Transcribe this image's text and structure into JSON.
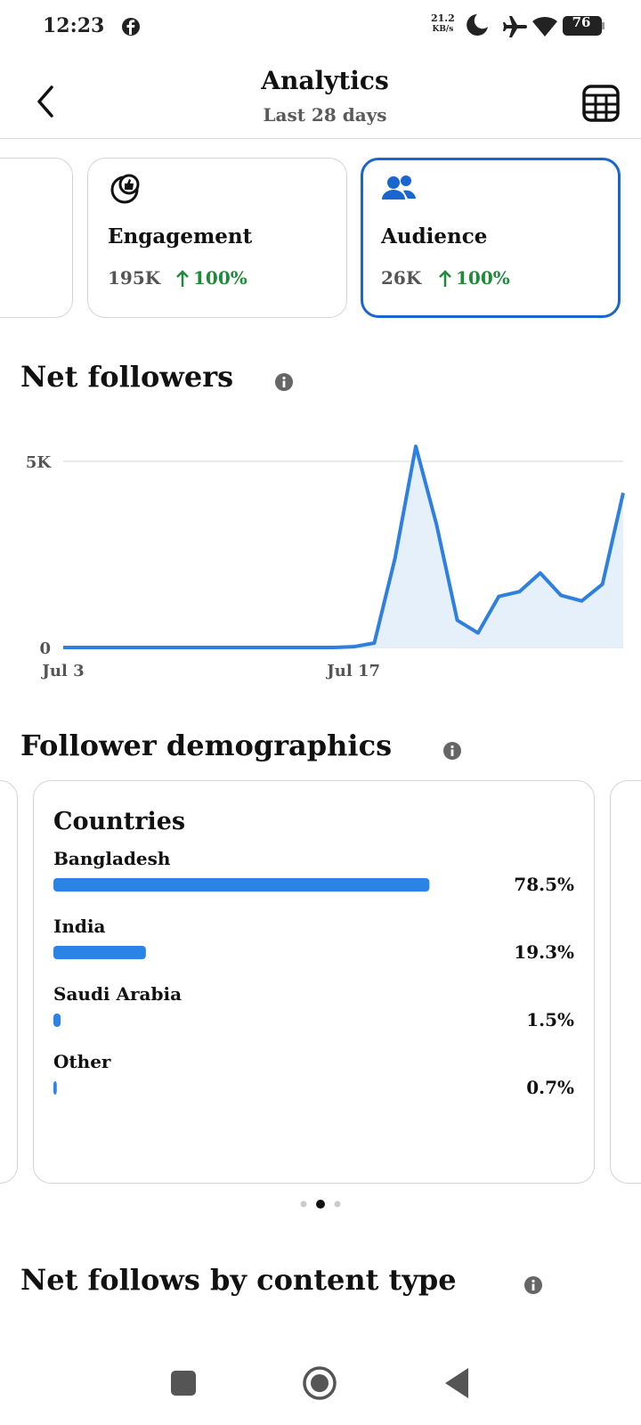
{
  "status_bar": {
    "time": "12:23",
    "speed": "21.2",
    "speed_unit": "KB/s",
    "battery": "76"
  },
  "header": {
    "title": "Analytics",
    "subtitle": "Last 28 days"
  },
  "cards": [
    {
      "title": "Engagement",
      "value": "195K",
      "change": "100%"
    },
    {
      "title": "Audience",
      "value": "26K",
      "change": "100%"
    }
  ],
  "chart_data": {
    "type": "line",
    "title": "Net followers",
    "categories": [
      "Jul 3",
      null,
      null,
      null,
      null,
      null,
      null,
      null,
      null,
      null,
      null,
      null,
      null,
      null,
      "Jul 17",
      null,
      null,
      null,
      null,
      null,
      null,
      null,
      null,
      null,
      null,
      null,
      null,
      null
    ],
    "values": [
      0,
      0,
      0,
      0,
      0,
      0,
      0,
      0,
      0,
      0,
      0,
      0,
      0,
      0,
      20,
      120,
      2400,
      5400,
      3300,
      730,
      390,
      1370,
      1500,
      2000,
      1400,
      1250,
      1700,
      4150
    ],
    "color": "#2d7fe0",
    "area_color": "#e6f0fb",
    "ylim": [
      0,
      5500
    ],
    "yticks": [
      0,
      {
        "value": 5000,
        "label": "5K"
      }
    ],
    "grid": true
  },
  "demographics": {
    "title": "Follower demographics",
    "card": {
      "title": "Countries",
      "type": "bar",
      "color": "#2b83e6",
      "xlim": [
        0,
        100
      ],
      "categories": [
        "Bangladesh",
        "India",
        "Saudi Arabia",
        "Other"
      ],
      "values": [
        78.5,
        19.3,
        1.5,
        0.7
      ],
      "value_labels": [
        "78.5%",
        "19.3%",
        "1.5%",
        "0.7%"
      ]
    }
  },
  "content_type": {
    "title": "Net follows by content type"
  }
}
